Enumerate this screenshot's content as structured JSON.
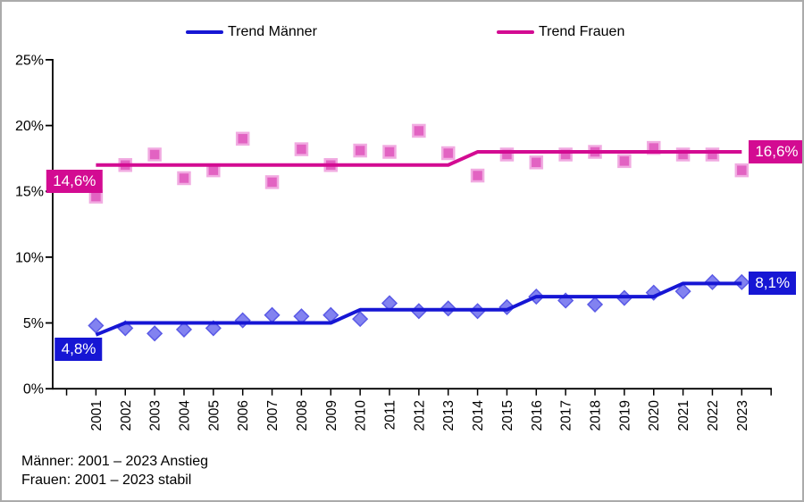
{
  "page": {
    "background": "#ffffff",
    "border_color": "#ababab"
  },
  "legend": {
    "items": [
      {
        "label": "Trend Männer",
        "color": "#1616d4"
      },
      {
        "label": "Trend Frauen",
        "color": "#d30b92"
      }
    ]
  },
  "annotations": [
    {
      "text": "14,6%",
      "series": "Frauen",
      "position": "start",
      "color": "#d30b92"
    },
    {
      "text": "16,6%",
      "series": "Frauen",
      "position": "end",
      "color": "#d30b92"
    },
    {
      "text": "4,8%",
      "series": "Männer",
      "position": "start",
      "color": "#1616d4"
    },
    {
      "text": "8,1%",
      "series": "Männer",
      "position": "end",
      "color": "#1616d4"
    }
  ],
  "footnotes": [
    "Männer: 2001 – 2023 Anstieg",
    "Frauen: 2001 – 2023 stabil"
  ],
  "chart_data": {
    "type": "scatter",
    "categories": [
      "2001",
      "2002",
      "2003",
      "2004",
      "2005",
      "2006",
      "2007",
      "2008",
      "2009",
      "2010",
      "2011",
      "2012",
      "2013",
      "2014",
      "2015",
      "2016",
      "2017",
      "2018",
      "2019",
      "2020",
      "2021",
      "2022",
      "2023"
    ],
    "ylim": [
      0,
      25
    ],
    "y_ticks": [
      {
        "value": 0,
        "label": "0%"
      },
      {
        "value": 5,
        "label": "5%"
      },
      {
        "value": 10,
        "label": "10%"
      },
      {
        "value": 15,
        "label": "15%"
      },
      {
        "value": 20,
        "label": "20%"
      },
      {
        "value": 25,
        "label": "25%"
      }
    ],
    "grid": false,
    "legend_position": "top",
    "series": [
      {
        "name": "Männer",
        "marker": "diamond",
        "color": "#1616d4",
        "marker_fill": "#8282f0",
        "marker_stroke": "#5a5ae6",
        "values": [
          4.8,
          4.6,
          4.2,
          4.5,
          4.6,
          5.2,
          5.6,
          5.5,
          5.6,
          5.3,
          6.5,
          5.9,
          6.1,
          5.9,
          6.2,
          7.0,
          6.7,
          6.4,
          6.9,
          7.3,
          7.4,
          8.1,
          8.1
        ],
        "trend": [
          4.1,
          5.0,
          5.0,
          5.0,
          5.0,
          5.0,
          5.0,
          5.0,
          5.0,
          6.0,
          6.0,
          6.0,
          6.0,
          6.0,
          6.0,
          7.0,
          7.0,
          7.0,
          7.0,
          7.0,
          8.0,
          8.0,
          8.0
        ],
        "first_value_label": "4,8%",
        "last_value_label": "8,1%"
      },
      {
        "name": "Frauen",
        "marker": "square",
        "color": "#d30b92",
        "marker_fill": "#e263c2",
        "marker_stroke": "#f1abe1",
        "values": [
          14.6,
          17.0,
          17.8,
          16.0,
          16.6,
          19.0,
          15.7,
          18.2,
          17.0,
          18.1,
          18.0,
          19.6,
          17.9,
          16.2,
          17.8,
          17.2,
          17.8,
          18.0,
          17.3,
          18.3,
          17.8,
          17.8,
          16.6
        ],
        "trend": [
          17.0,
          17.0,
          17.0,
          17.0,
          17.0,
          17.0,
          17.0,
          17.0,
          17.0,
          17.0,
          17.0,
          17.0,
          17.0,
          18.0,
          18.0,
          18.0,
          18.0,
          18.0,
          18.0,
          18.0,
          18.0,
          18.0,
          18.0
        ],
        "first_value_label": "14,6%",
        "last_value_label": "16,6%"
      }
    ]
  }
}
